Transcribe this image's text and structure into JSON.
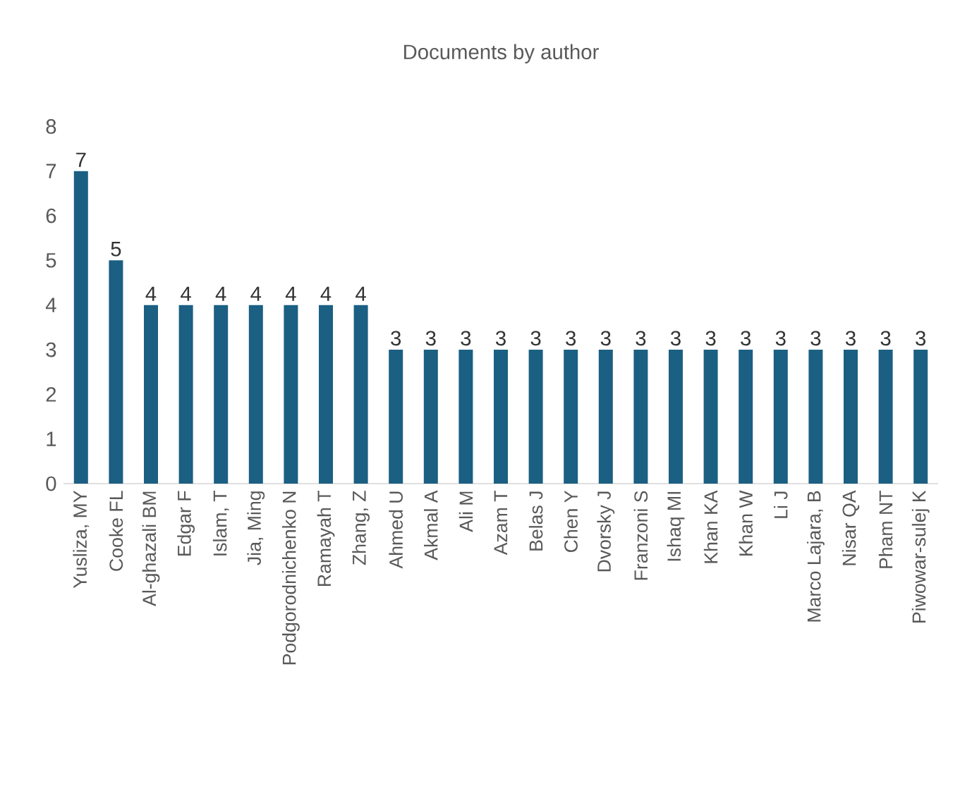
{
  "chart_data": {
    "type": "bar",
    "title": "Documents by author",
    "categories": [
      "Yusliza, MY",
      "Cooke FL",
      "Al-ghazali BM",
      "Edgar F",
      "Islam, T",
      "Jia, Ming",
      "Podgorodnichenko N",
      "Ramayah T",
      "Zhang, Z",
      "Ahmed U",
      "Akmal A",
      "Ali M",
      "Azam T",
      "Belas J",
      "Chen Y",
      "Dvorsky J",
      "Franzoni S",
      "Ishaq MI",
      "Khan KA",
      "Khan W",
      "Li J",
      "Marco Lajara, B",
      "Nisar QA",
      "Pham NT",
      "Piwowar-sulej K"
    ],
    "values": [
      7,
      5,
      4,
      4,
      4,
      4,
      4,
      4,
      4,
      3,
      3,
      3,
      3,
      3,
      3,
      3,
      3,
      3,
      3,
      3,
      3,
      3,
      3,
      3,
      3
    ],
    "color": "#1b5f82",
    "ylim": [
      0,
      8
    ],
    "yticks": [
      0,
      1,
      2,
      3,
      4,
      5,
      6,
      7,
      8
    ],
    "data_labels": true
  }
}
